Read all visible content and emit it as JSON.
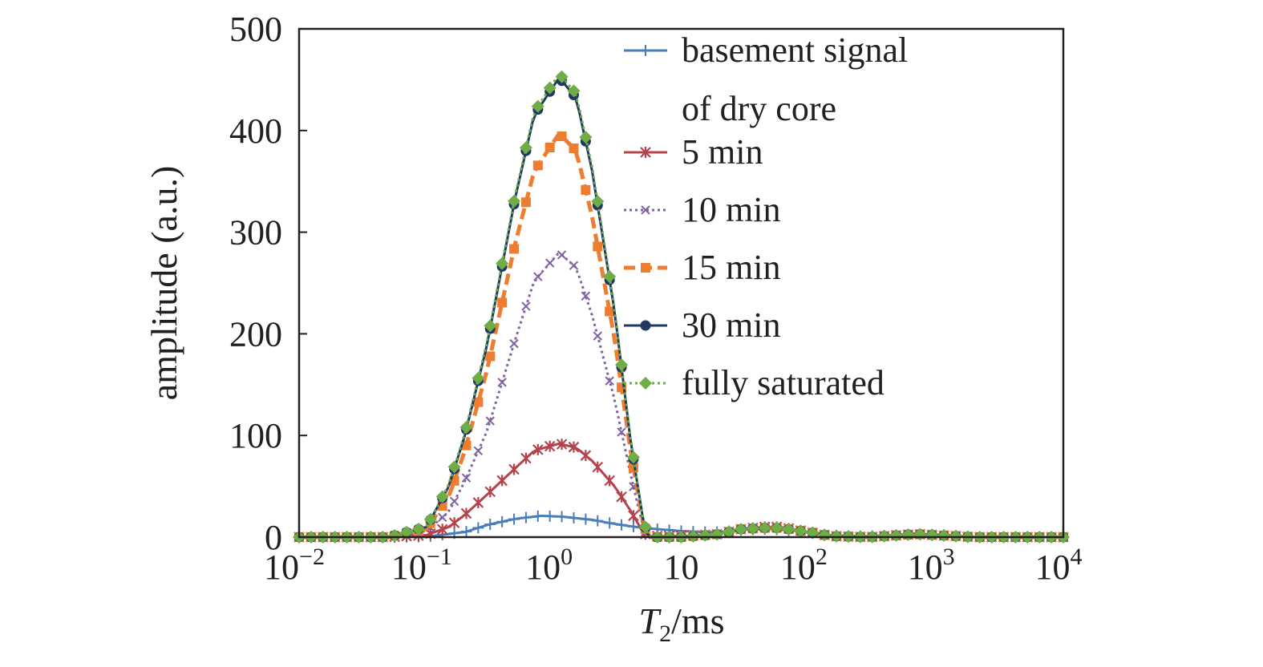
{
  "chart_data": {
    "type": "line",
    "title": "",
    "xlabel": {
      "main": "T",
      "sub": "2",
      "unit": "/ms"
    },
    "ylabel": "amplitude (a.u.)",
    "x_scale": "log",
    "xlim": [
      0.01,
      10000
    ],
    "ylim": [
      0,
      500
    ],
    "x_ticks": [
      {
        "value": 0.01,
        "base": "10",
        "exp": "−2"
      },
      {
        "value": 0.1,
        "base": "10",
        "exp": "−1"
      },
      {
        "value": 1,
        "base": "10",
        "exp": "0"
      },
      {
        "value": 10,
        "base": "10",
        "exp": ""
      },
      {
        "value": 100,
        "base": "10",
        "exp": "2"
      },
      {
        "value": 1000,
        "base": "10",
        "exp": "3"
      },
      {
        "value": 10000,
        "base": "10",
        "exp": "4"
      }
    ],
    "y_ticks": [
      {
        "value": 0,
        "label": "0"
      },
      {
        "value": 100,
        "label": "100"
      },
      {
        "value": 200,
        "label": "200"
      },
      {
        "value": 300,
        "label": "300"
      },
      {
        "value": 400,
        "label": "400"
      },
      {
        "value": 500,
        "label": "500"
      }
    ],
    "grid": false,
    "legend_position": "top-right",
    "series": [
      {
        "name": "basement signal of dry core",
        "legend_lines": [
          "basement signal",
          "of dry core"
        ],
        "color": "#4a7ebb",
        "marker": "plus",
        "dash": "solid",
        "points": [
          [
            0.01,
            0
          ],
          [
            0.05,
            0
          ],
          [
            0.1,
            0.5
          ],
          [
            0.2,
            5
          ],
          [
            0.3,
            12
          ],
          [
            0.5,
            18
          ],
          [
            0.8,
            21
          ],
          [
            1.2,
            20
          ],
          [
            2,
            17
          ],
          [
            3,
            13
          ],
          [
            5,
            9
          ],
          [
            10,
            6
          ],
          [
            15,
            5
          ],
          [
            20,
            5
          ],
          [
            30,
            7
          ],
          [
            50,
            8
          ],
          [
            80,
            6
          ],
          [
            120,
            3
          ],
          [
            200,
            1
          ],
          [
            300,
            1
          ],
          [
            500,
            2
          ],
          [
            800,
            3
          ],
          [
            1200,
            2
          ],
          [
            2000,
            0
          ],
          [
            10000,
            0
          ]
        ]
      },
      {
        "name": "5 min",
        "color": "#b5434c",
        "marker": "star",
        "dash": "solid",
        "points": [
          [
            0.01,
            0
          ],
          [
            0.05,
            0
          ],
          [
            0.1,
            2
          ],
          [
            0.15,
            10
          ],
          [
            0.2,
            22
          ],
          [
            0.3,
            42
          ],
          [
            0.5,
            68
          ],
          [
            0.7,
            85
          ],
          [
            1.1,
            92
          ],
          [
            1.5,
            88
          ],
          [
            2,
            75
          ],
          [
            3,
            50
          ],
          [
            4,
            26
          ],
          [
            5,
            5
          ],
          [
            5.5,
            1
          ],
          [
            10,
            1
          ],
          [
            20,
            3
          ],
          [
            30,
            8
          ],
          [
            45,
            10
          ],
          [
            60,
            10
          ],
          [
            100,
            5
          ],
          [
            150,
            1
          ],
          [
            300,
            0
          ],
          [
            700,
            3
          ],
          [
            1000,
            2
          ],
          [
            2000,
            0
          ],
          [
            10000,
            0
          ]
        ]
      },
      {
        "name": "10 min",
        "color": "#8064a2",
        "marker": "x",
        "dash": "dotted",
        "points": [
          [
            0.01,
            0
          ],
          [
            0.05,
            0
          ],
          [
            0.1,
            6
          ],
          [
            0.15,
            25
          ],
          [
            0.2,
            55
          ],
          [
            0.3,
            105
          ],
          [
            0.5,
            195
          ],
          [
            0.7,
            252
          ],
          [
            1.1,
            280
          ],
          [
            1.5,
            265
          ],
          [
            2,
            218
          ],
          [
            3,
            135
          ],
          [
            4,
            62
          ],
          [
            5,
            10
          ],
          [
            5.5,
            0
          ],
          [
            10,
            0
          ],
          [
            20,
            3
          ],
          [
            30,
            8
          ],
          [
            45,
            9
          ],
          [
            60,
            9
          ],
          [
            100,
            5
          ],
          [
            150,
            1
          ],
          [
            300,
            0
          ],
          [
            700,
            3
          ],
          [
            1000,
            2
          ],
          [
            2000,
            0
          ],
          [
            10000,
            0
          ]
        ]
      },
      {
        "name": "15 min",
        "color": "#ed7d31",
        "marker": "square",
        "dash": "dashed",
        "points": [
          [
            0.01,
            0
          ],
          [
            0.05,
            0
          ],
          [
            0.1,
            8
          ],
          [
            0.15,
            40
          ],
          [
            0.2,
            85
          ],
          [
            0.3,
            165
          ],
          [
            0.5,
            290
          ],
          [
            0.7,
            360
          ],
          [
            1.1,
            397
          ],
          [
            1.5,
            380
          ],
          [
            2,
            315
          ],
          [
            3,
            195
          ],
          [
            4,
            85
          ],
          [
            5,
            15
          ],
          [
            5.5,
            0
          ],
          [
            10,
            0
          ],
          [
            20,
            3
          ],
          [
            30,
            8
          ],
          [
            45,
            9
          ],
          [
            60,
            9
          ],
          [
            100,
            5
          ],
          [
            150,
            1
          ],
          [
            300,
            0
          ],
          [
            700,
            3
          ],
          [
            1000,
            2
          ],
          [
            2000,
            0
          ],
          [
            10000,
            0
          ]
        ]
      },
      {
        "name": "30 min",
        "color": "#1f3864",
        "marker": "circle",
        "dash": "solid",
        "points": [
          [
            0.01,
            0
          ],
          [
            0.05,
            0
          ],
          [
            0.1,
            10
          ],
          [
            0.15,
            50
          ],
          [
            0.2,
            100
          ],
          [
            0.3,
            190
          ],
          [
            0.5,
            335
          ],
          [
            0.7,
            415
          ],
          [
            1.1,
            452
          ],
          [
            1.5,
            432
          ],
          [
            2,
            360
          ],
          [
            3,
            222
          ],
          [
            4,
            95
          ],
          [
            5,
            18
          ],
          [
            5.5,
            0
          ],
          [
            10,
            0
          ],
          [
            20,
            3
          ],
          [
            30,
            8
          ],
          [
            45,
            9
          ],
          [
            60,
            9
          ],
          [
            100,
            5
          ],
          [
            150,
            1
          ],
          [
            300,
            0
          ],
          [
            700,
            3
          ],
          [
            1000,
            2
          ],
          [
            2000,
            0
          ],
          [
            10000,
            0
          ]
        ]
      },
      {
        "name": "fully saturated",
        "color": "#70ad47",
        "marker": "diamond",
        "dash": "dotted",
        "points": [
          [
            0.01,
            0
          ],
          [
            0.05,
            0
          ],
          [
            0.1,
            10
          ],
          [
            0.15,
            52
          ],
          [
            0.2,
            102
          ],
          [
            0.3,
            193
          ],
          [
            0.5,
            338
          ],
          [
            0.7,
            418
          ],
          [
            1.1,
            456
          ],
          [
            1.5,
            436
          ],
          [
            2,
            364
          ],
          [
            3,
            225
          ],
          [
            4,
            97
          ],
          [
            5,
            19
          ],
          [
            5.5,
            0
          ],
          [
            10,
            0
          ],
          [
            20,
            3
          ],
          [
            30,
            8
          ],
          [
            45,
            9
          ],
          [
            60,
            9
          ],
          [
            100,
            5
          ],
          [
            150,
            1
          ],
          [
            300,
            0
          ],
          [
            700,
            3
          ],
          [
            1000,
            2
          ],
          [
            2000,
            0
          ],
          [
            10000,
            0
          ]
        ]
      }
    ]
  }
}
